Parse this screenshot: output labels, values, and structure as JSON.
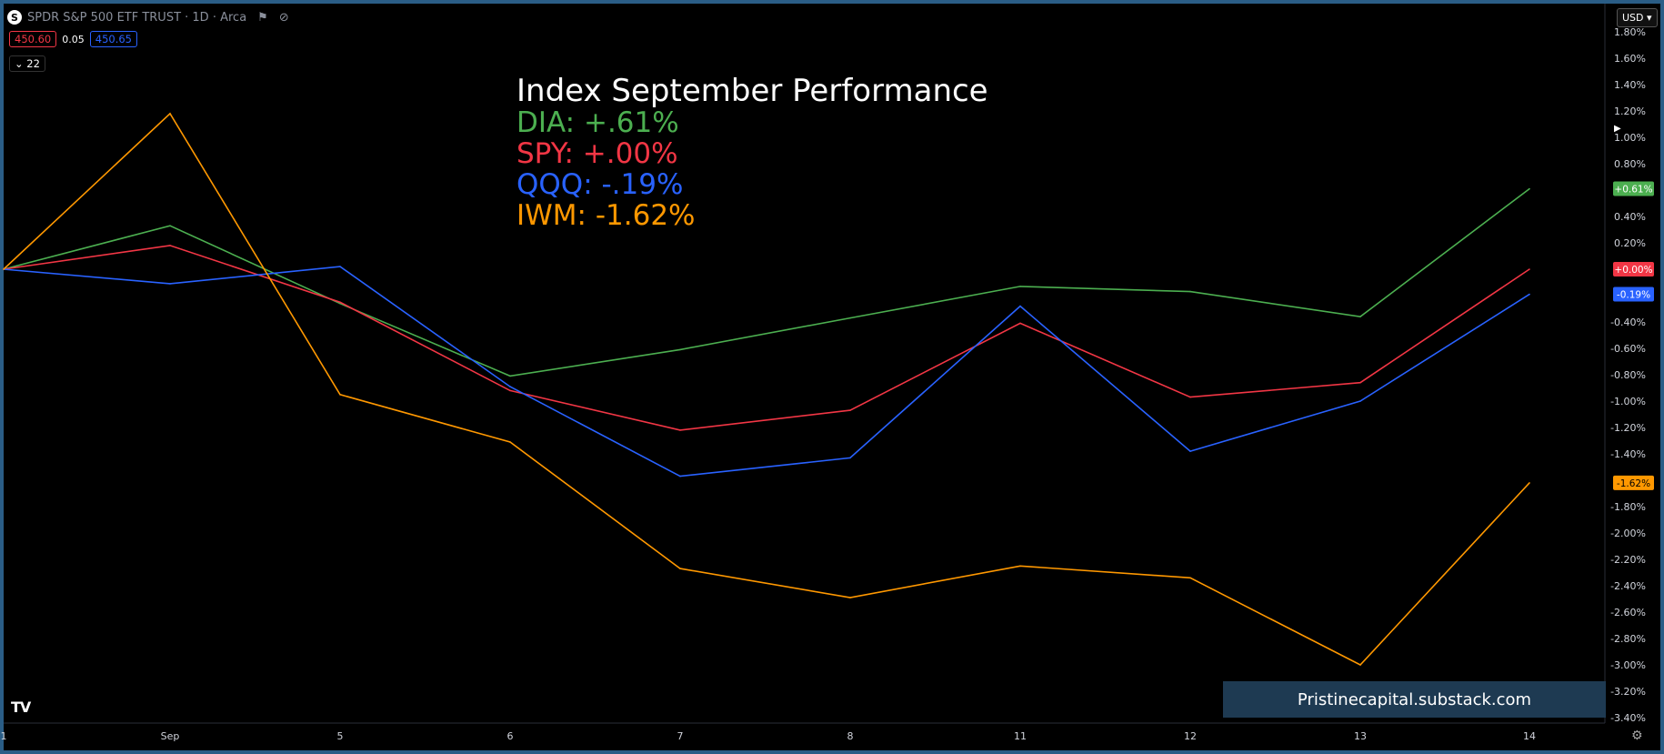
{
  "header": {
    "symbol_logo": "S",
    "title": "SPDR S&P 500 ETF TRUST · 1D · Arca",
    "icons": [
      "flag-icon",
      "eye-off-icon"
    ]
  },
  "quote": {
    "sell": "450.60",
    "spread": "0.05",
    "buy": "450.65"
  },
  "indicator_collapse": {
    "label": "22"
  },
  "currency_button": "USD",
  "annotation": {
    "title": "Index September Performance",
    "lines": [
      {
        "text": "DIA: +.61%",
        "color": "#4caf50"
      },
      {
        "text": "SPY: +.00%",
        "color": "#f23645"
      },
      {
        "text": "QQQ: -.19%",
        "color": "#2962ff"
      },
      {
        "text": "IWM: -1.62%",
        "color": "#ff9800"
      }
    ]
  },
  "watermark": "Pristinecapital.substack.com",
  "logo": "TV",
  "chart_data": {
    "type": "line",
    "x": [
      "1",
      "Sep",
      "5",
      "6",
      "7",
      "8",
      "11",
      "12",
      "13",
      "14"
    ],
    "x_tick_labels": [
      "1",
      "Sep",
      "5",
      "6",
      "7",
      "8",
      "11",
      "12",
      "13",
      "14"
    ],
    "ylim": [
      -3.4,
      1.8
    ],
    "y_ticks": [
      1.8,
      1.6,
      1.4,
      1.2,
      1.0,
      0.8,
      0.4,
      0.2,
      -0.4,
      -0.6,
      -0.8,
      -1.0,
      -1.2,
      -1.4,
      -1.8,
      -2.0,
      -2.2,
      -2.4,
      -2.6,
      -2.8,
      -3.0,
      -3.2,
      -3.4
    ],
    "y_tick_labels": [
      "1.80%",
      "1.60%",
      "1.40%",
      "1.20%",
      "1.00%",
      "0.80%",
      "0.40%",
      "0.20%",
      "-0.40%",
      "-0.60%",
      "-0.80%",
      "-1.00%",
      "-1.20%",
      "-1.40%",
      "-1.80%",
      "-2.00%",
      "-2.20%",
      "-2.40%",
      "-2.60%",
      "-2.80%",
      "-3.00%",
      "-3.20%",
      "-3.40%"
    ],
    "series": [
      {
        "name": "DIA",
        "color": "#4caf50",
        "values": [
          0.0,
          0.33,
          -0.26,
          -0.81,
          -0.61,
          -0.37,
          -0.13,
          -0.17,
          -0.36,
          0.61
        ],
        "last_label": "+0.61%"
      },
      {
        "name": "SPY",
        "color": "#f23645",
        "values": [
          0.0,
          0.18,
          -0.25,
          -0.92,
          -1.22,
          -1.07,
          -0.41,
          -0.97,
          -0.86,
          0.0
        ],
        "last_label": "+0.00%"
      },
      {
        "name": "QQQ",
        "color": "#2962ff",
        "values": [
          0.0,
          -0.11,
          0.02,
          -0.89,
          -1.57,
          -1.43,
          -0.28,
          -1.38,
          -1.0,
          -0.19
        ],
        "last_label": "-0.19%"
      },
      {
        "name": "IWM",
        "color": "#ff9800",
        "values": [
          0.0,
          1.18,
          -0.95,
          -1.31,
          -2.27,
          -2.49,
          -2.25,
          -2.34,
          -3.0,
          -1.62
        ],
        "last_label": "-1.62%"
      }
    ]
  }
}
